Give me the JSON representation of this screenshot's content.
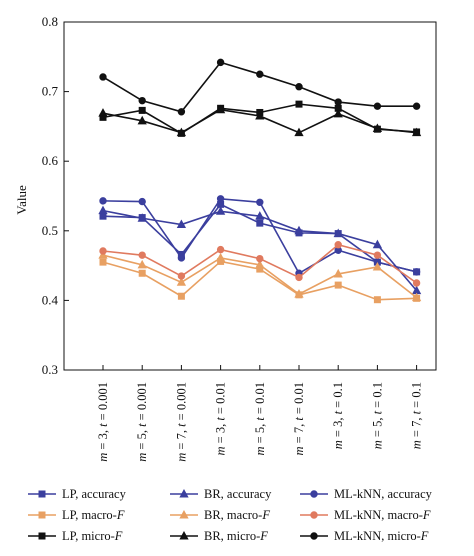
{
  "chart_data": {
    "type": "line",
    "ylabel": "Value",
    "xlabel": "",
    "ylim": [
      0.3,
      0.8
    ],
    "yticks": [
      "0.3",
      "0.4",
      "0.5",
      "0.6",
      "0.7",
      "0.8"
    ],
    "grid": false,
    "legend_position": "bottom",
    "categories": [
      {
        "m": "m",
        "m_val": " = 3, ",
        "t": "t",
        "t_val": " = 0.001"
      },
      {
        "m": "m",
        "m_val": " = 5, ",
        "t": "t",
        "t_val": " = 0.001"
      },
      {
        "m": "m",
        "m_val": " = 7, ",
        "t": "t",
        "t_val": " = 0.001"
      },
      {
        "m": "m",
        "m_val": " = 3, ",
        "t": "t",
        "t_val": " = 0.01"
      },
      {
        "m": "m",
        "m_val": " = 5, ",
        "t": "t",
        "t_val": " = 0.01"
      },
      {
        "m": "m",
        "m_val": " = 7, ",
        "t": "t",
        "t_val": " = 0.01"
      },
      {
        "m": "m",
        "m_val": " = 3, ",
        "t": "t",
        "t_val": " = 0.1"
      },
      {
        "m": "m",
        "m_val": " = 5, ",
        "t": "t",
        "t_val": " = 0.1"
      },
      {
        "m": "m",
        "m_val": " = 7, ",
        "t": "t",
        "t_val": " = 0.1"
      }
    ],
    "series": [
      {
        "name": "LP, accuracy",
        "name_plain": "LP, accuracy",
        "name_italic": "",
        "color": "#3b3f9e",
        "marker": "square",
        "values": [
          0.521,
          0.519,
          0.466,
          0.538,
          0.511,
          0.497,
          0.496,
          0.455,
          0.441
        ]
      },
      {
        "name": "BR, accuracy",
        "name_plain": "BR, accuracy",
        "name_italic": "",
        "color": "#3b3f9e",
        "marker": "triangle",
        "values": [
          0.529,
          0.518,
          0.509,
          0.528,
          0.521,
          0.5,
          0.496,
          0.48,
          0.414
        ]
      },
      {
        "name": "ML-kNN, accuracy",
        "name_plain": "ML-kNN, accuracy",
        "name_italic": "",
        "color": "#3b3f9e",
        "marker": "circle",
        "values": [
          0.543,
          0.542,
          0.461,
          0.546,
          0.541,
          0.439,
          0.472,
          0.455,
          0.441
        ]
      },
      {
        "name": "LP, macro-F",
        "name_plain": "LP, macro-",
        "name_italic": "F",
        "color": "#e8a062",
        "marker": "square",
        "values": [
          0.455,
          0.439,
          0.406,
          0.456,
          0.445,
          0.408,
          0.422,
          0.401,
          0.403
        ]
      },
      {
        "name": "BR, macro-F",
        "name_plain": "BR, macro-",
        "name_italic": "F",
        "color": "#e8a062",
        "marker": "triangle",
        "values": [
          0.465,
          0.451,
          0.426,
          0.461,
          0.451,
          0.409,
          0.438,
          0.448,
          0.404
        ]
      },
      {
        "name": "ML-kNN, macro-F",
        "name_plain": "ML-kNN, macro-",
        "name_italic": "F",
        "color": "#e07a5f",
        "marker": "circle",
        "values": [
          0.471,
          0.465,
          0.435,
          0.473,
          0.46,
          0.433,
          0.48,
          0.465,
          0.425
        ]
      },
      {
        "name": "LP, micro-F",
        "name_plain": "LP, micro-",
        "name_italic": "F",
        "color": "#111111",
        "marker": "square",
        "values": [
          0.663,
          0.673,
          0.64,
          0.676,
          0.67,
          0.682,
          0.676,
          0.646,
          0.642
        ]
      },
      {
        "name": "BR, micro-F",
        "name_plain": "BR, micro-",
        "name_italic": "F",
        "color": "#111111",
        "marker": "triangle",
        "values": [
          0.669,
          0.658,
          0.641,
          0.674,
          0.665,
          0.641,
          0.668,
          0.647,
          0.641
        ]
      },
      {
        "name": "ML-kNN, micro-F",
        "name_plain": "ML-kNN, micro-",
        "name_italic": "F",
        "color": "#111111",
        "marker": "circle",
        "values": [
          0.721,
          0.687,
          0.671,
          0.742,
          0.725,
          0.707,
          0.685,
          0.679,
          0.679
        ]
      }
    ]
  }
}
